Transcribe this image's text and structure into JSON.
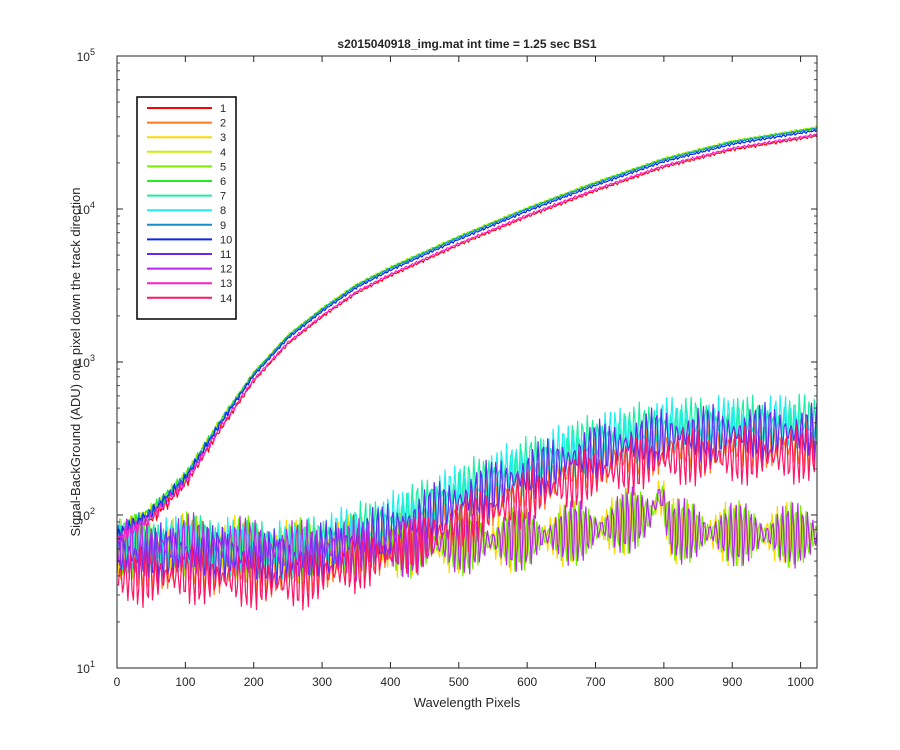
{
  "chart_data": {
    "type": "line",
    "title": "s2015040918_img.mat int time = 1.25 sec   BS1",
    "xlabel": "Wavelength Pixels",
    "ylabel": "Signal-BackGround (ADU) one pixel down the track direction",
    "xlim": [
      0,
      1024
    ],
    "ylim": [
      10,
      100000
    ],
    "yscale": "log",
    "x_ticks": [
      0,
      100,
      200,
      300,
      400,
      500,
      600,
      700,
      800,
      900,
      1000
    ],
    "y_ticks": [
      {
        "value": 10,
        "base": "10",
        "exp": "1"
      },
      {
        "value": 100,
        "base": "10",
        "exp": "2"
      },
      {
        "value": 1000,
        "base": "10",
        "exp": "3"
      },
      {
        "value": 10000,
        "base": "10",
        "exp": "4"
      },
      {
        "value": 100000,
        "base": "10",
        "exp": "5"
      }
    ],
    "legend_position": "top-left",
    "series": [
      {
        "name": "1",
        "color": "#ff0000",
        "group": "high",
        "scale": 0.94,
        "noise": 0.07,
        "offset": 0.6
      },
      {
        "name": "2",
        "color": "#ff7a1a",
        "group": "low",
        "scale": 0.72,
        "noise": 0.2,
        "offset": 1.1
      },
      {
        "name": "3",
        "color": "#ffd700",
        "group": "low",
        "scale": 1.0,
        "noise": 0.22,
        "offset": 1.7
      },
      {
        "name": "4",
        "color": "#c8f000",
        "group": "high",
        "scale": 1.07,
        "noise": 0.06,
        "offset": 2.3
      },
      {
        "name": "5",
        "color": "#78f000",
        "group": "low",
        "scale": 1.0,
        "noise": 0.22,
        "offset": 2.9
      },
      {
        "name": "6",
        "color": "#22ee22",
        "group": "high",
        "scale": 1.06,
        "noise": 0.06,
        "offset": 3.4
      },
      {
        "name": "7",
        "color": "#1af0a0",
        "group": "low",
        "scale": 1.0,
        "noise": 0.2,
        "offset": 4.0
      },
      {
        "name": "8",
        "color": "#1ef0f0",
        "group": "low",
        "scale": 1.0,
        "noise": 0.2,
        "offset": 4.6
      },
      {
        "name": "9",
        "color": "#1a8ccc",
        "group": "high",
        "scale": 1.05,
        "noise": 0.06,
        "offset": 5.2
      },
      {
        "name": "10",
        "color": "#0a28f0",
        "group": "high",
        "scale": 1.02,
        "noise": 0.06,
        "offset": 5.8
      },
      {
        "name": "11",
        "color": "#6628f0",
        "group": "low",
        "scale": 0.88,
        "noise": 0.2,
        "offset": 6.3
      },
      {
        "name": "12",
        "color": "#b428f0",
        "group": "low",
        "scale": 1.0,
        "noise": 0.22,
        "offset": 6.9
      },
      {
        "name": "13",
        "color": "#ff1ec8",
        "group": "high",
        "scale": 0.96,
        "noise": 0.06,
        "offset": 7.5
      },
      {
        "name": "14",
        "color": "#ff1466",
        "group": "low",
        "scale": 0.62,
        "noise": 0.2,
        "offset": 8.1
      }
    ],
    "profiles": {
      "high": {
        "x": [
          0,
          50,
          100,
          150,
          200,
          250,
          300,
          350,
          400,
          500,
          600,
          700,
          800,
          900,
          1024
        ],
        "y": [
          72,
          100,
          170,
          380,
          800,
          1400,
          2100,
          3000,
          3900,
          6200,
          9500,
          14000,
          20000,
          26000,
          32000
        ]
      },
      "low_a": {
        "x": [
          0,
          100,
          200,
          260,
          300,
          400,
          500,
          600,
          700,
          780,
          800,
          900,
          1024
        ],
        "y": [
          62,
          65,
          60,
          58,
          66,
          90,
          140,
          210,
          300,
          360,
          380,
          390,
          400
        ]
      },
      "low_b": {
        "x": [
          0,
          100,
          200,
          260,
          300,
          400,
          500,
          600,
          700,
          780,
          795,
          810,
          900,
          1024
        ],
        "y": [
          60,
          64,
          60,
          58,
          60,
          62,
          66,
          70,
          80,
          100,
          140,
          80,
          75,
          74
        ]
      }
    }
  }
}
